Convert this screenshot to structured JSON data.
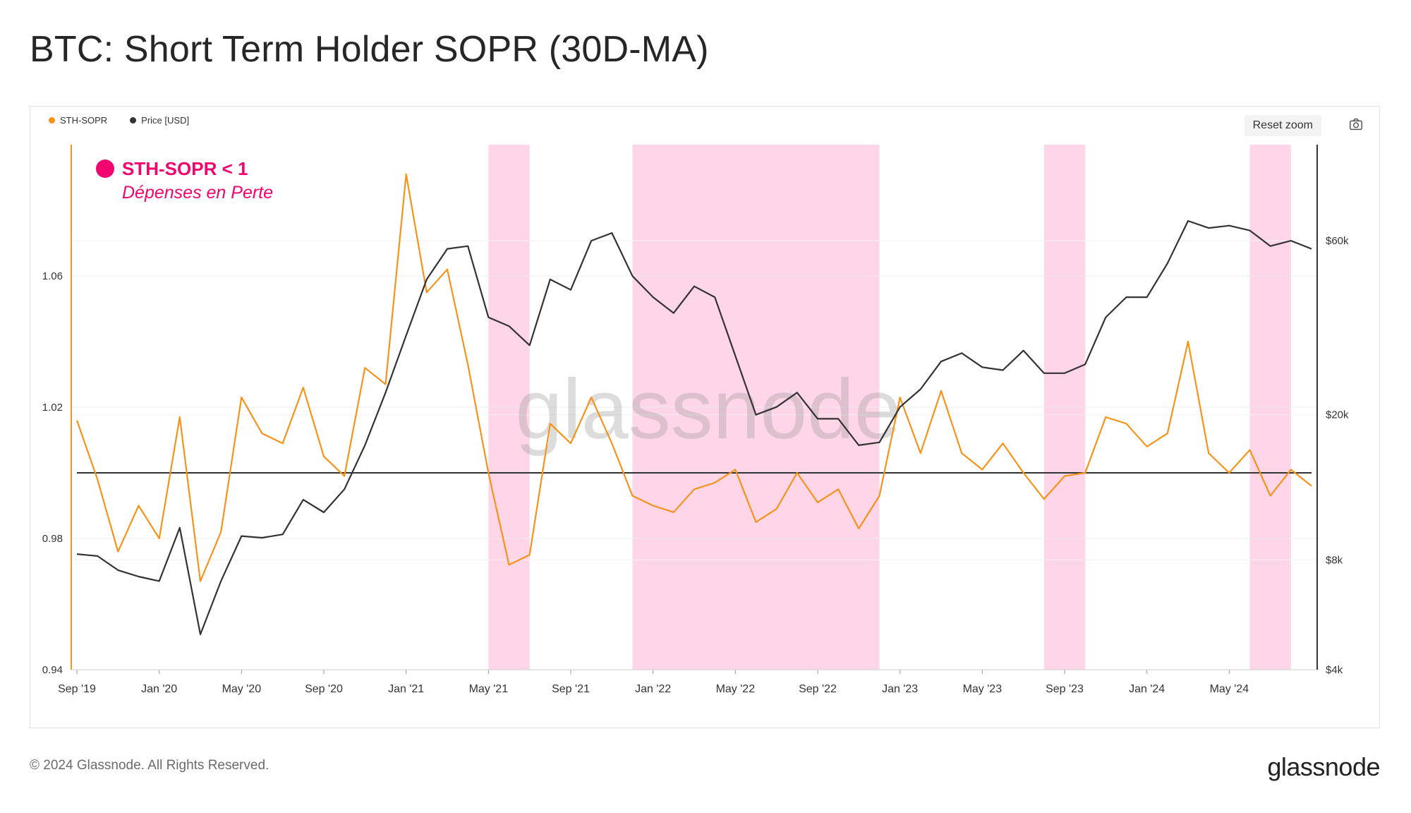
{
  "title": "BTC: Short Term Holder SOPR (30D-MA)",
  "legend": [
    {
      "label": "STH-SOPR",
      "color": "#f7931a"
    },
    {
      "label": "Price [USD]",
      "color": "#333333"
    }
  ],
  "toolbar": {
    "reset_zoom_label": "Reset zoom",
    "camera_icon": "camera-icon"
  },
  "annotation": {
    "line1": "STH-SOPR < 1",
    "line2": "Dépenses en Perte",
    "color": "#f0066e"
  },
  "watermark": "glassnode",
  "footer": {
    "copyright": "© 2024 Glassnode. All Rights Reserved.",
    "logo": "glassnode"
  },
  "chart_data": {
    "type": "line",
    "x_tick_labels": [
      "Sep '19",
      "Jan '20",
      "May '20",
      "Sep '20",
      "Jan '21",
      "May '21",
      "Sep '21",
      "Jan '22",
      "May '22",
      "Sep '22",
      "Jan '23",
      "May '23",
      "Sep '23",
      "Jan '24",
      "May '24"
    ],
    "x_range": [
      "2019-09",
      "2024-09"
    ],
    "y_left": {
      "ticks": [
        "0.94",
        "0.98",
        "1.02",
        "1.06"
      ],
      "range": [
        0.94,
        1.1
      ],
      "scale": "linear"
    },
    "y_right": {
      "ticks": [
        "$4k",
        "$8k",
        "$20k",
        "$60k"
      ],
      "range": [
        4000,
        110000
      ],
      "scale": "log"
    },
    "reference_line": {
      "y": 1.0
    },
    "highlight_color": "#ffd6e7",
    "highlight_periods": [
      {
        "start": "2021-05",
        "end": "2021-07"
      },
      {
        "start": "2021-12",
        "end": "2022-12"
      },
      {
        "start": "2023-08",
        "end": "2023-10"
      },
      {
        "start": "2024-06",
        "end": "2024-08"
      }
    ],
    "series": [
      {
        "name": "STH-SOPR",
        "color": "#f7931a",
        "axis": "left",
        "points": [
          [
            "2019-09",
            1.016
          ],
          [
            "2019-10",
            0.998
          ],
          [
            "2019-11",
            0.976
          ],
          [
            "2019-12",
            0.99
          ],
          [
            "2020-01",
            0.98
          ],
          [
            "2020-02",
            1.017
          ],
          [
            "2020-03",
            0.967
          ],
          [
            "2020-04",
            0.982
          ],
          [
            "2020-05",
            1.023
          ],
          [
            "2020-06",
            1.012
          ],
          [
            "2020-07",
            1.009
          ],
          [
            "2020-08",
            1.026
          ],
          [
            "2020-09",
            1.005
          ],
          [
            "2020-10",
            0.999
          ],
          [
            "2020-11",
            1.032
          ],
          [
            "2020-12",
            1.027
          ],
          [
            "2021-01",
            1.091
          ],
          [
            "2021-02",
            1.055
          ],
          [
            "2021-03",
            1.062
          ],
          [
            "2021-04",
            1.033
          ],
          [
            "2021-05",
            1.0
          ],
          [
            "2021-06",
            0.972
          ],
          [
            "2021-07",
            0.975
          ],
          [
            "2021-08",
            1.015
          ],
          [
            "2021-09",
            1.009
          ],
          [
            "2021-10",
            1.023
          ],
          [
            "2021-11",
            1.009
          ],
          [
            "2021-12",
            0.993
          ],
          [
            "2022-01",
            0.99
          ],
          [
            "2022-02",
            0.988
          ],
          [
            "2022-03",
            0.995
          ],
          [
            "2022-04",
            0.997
          ],
          [
            "2022-05",
            1.001
          ],
          [
            "2022-06",
            0.985
          ],
          [
            "2022-07",
            0.989
          ],
          [
            "2022-08",
            1.0
          ],
          [
            "2022-09",
            0.991
          ],
          [
            "2022-10",
            0.995
          ],
          [
            "2022-11",
            0.983
          ],
          [
            "2022-12",
            0.993
          ],
          [
            "2023-01",
            1.023
          ],
          [
            "2023-02",
            1.006
          ],
          [
            "2023-03",
            1.025
          ],
          [
            "2023-04",
            1.006
          ],
          [
            "2023-05",
            1.001
          ],
          [
            "2023-06",
            1.009
          ],
          [
            "2023-07",
            1.0
          ],
          [
            "2023-08",
            0.992
          ],
          [
            "2023-09",
            0.999
          ],
          [
            "2023-10",
            1.0
          ],
          [
            "2023-11",
            1.017
          ],
          [
            "2023-12",
            1.015
          ],
          [
            "2024-01",
            1.008
          ],
          [
            "2024-02",
            1.012
          ],
          [
            "2024-03",
            1.04
          ],
          [
            "2024-04",
            1.006
          ],
          [
            "2024-05",
            1.0
          ],
          [
            "2024-06",
            1.007
          ],
          [
            "2024-07",
            0.993
          ],
          [
            "2024-08",
            1.001
          ],
          [
            "2024-09",
            0.996
          ]
        ]
      },
      {
        "name": "Price [USD]",
        "color": "#333333",
        "axis": "right",
        "points": [
          [
            "2019-09",
            8300
          ],
          [
            "2019-10",
            8200
          ],
          [
            "2019-11",
            7500
          ],
          [
            "2019-12",
            7200
          ],
          [
            "2020-01",
            7000
          ],
          [
            "2020-02",
            9800
          ],
          [
            "2020-03",
            5000
          ],
          [
            "2020-04",
            7000
          ],
          [
            "2020-05",
            9300
          ],
          [
            "2020-06",
            9200
          ],
          [
            "2020-07",
            9400
          ],
          [
            "2020-08",
            11700
          ],
          [
            "2020-09",
            10800
          ],
          [
            "2020-10",
            12500
          ],
          [
            "2020-11",
            16500
          ],
          [
            "2020-12",
            23000
          ],
          [
            "2021-01",
            33000
          ],
          [
            "2021-02",
            47000
          ],
          [
            "2021-03",
            57000
          ],
          [
            "2021-04",
            58000
          ],
          [
            "2021-05",
            37000
          ],
          [
            "2021-06",
            35000
          ],
          [
            "2021-07",
            31000
          ],
          [
            "2021-08",
            47000
          ],
          [
            "2021-09",
            44000
          ],
          [
            "2021-10",
            60000
          ],
          [
            "2021-11",
            63000
          ],
          [
            "2021-12",
            48000
          ],
          [
            "2022-01",
            42000
          ],
          [
            "2022-02",
            38000
          ],
          [
            "2022-03",
            45000
          ],
          [
            "2022-04",
            42000
          ],
          [
            "2022-05",
            29000
          ],
          [
            "2022-06",
            20000
          ],
          [
            "2022-07",
            21000
          ],
          [
            "2022-08",
            23000
          ],
          [
            "2022-09",
            19500
          ],
          [
            "2022-10",
            19500
          ],
          [
            "2022-11",
            16500
          ],
          [
            "2022-12",
            16800
          ],
          [
            "2023-01",
            21000
          ],
          [
            "2023-02",
            23500
          ],
          [
            "2023-03",
            28000
          ],
          [
            "2023-04",
            29500
          ],
          [
            "2023-05",
            27000
          ],
          [
            "2023-06",
            26500
          ],
          [
            "2023-07",
            30000
          ],
          [
            "2023-08",
            26000
          ],
          [
            "2023-09",
            26000
          ],
          [
            "2023-10",
            27500
          ],
          [
            "2023-11",
            37000
          ],
          [
            "2023-12",
            42000
          ],
          [
            "2024-01",
            42000
          ],
          [
            "2024-02",
            52000
          ],
          [
            "2024-03",
            68000
          ],
          [
            "2024-04",
            65000
          ],
          [
            "2024-05",
            66000
          ],
          [
            "2024-06",
            64000
          ],
          [
            "2024-07",
            58000
          ],
          [
            "2024-08",
            60000
          ],
          [
            "2024-09",
            57000
          ]
        ]
      }
    ]
  }
}
